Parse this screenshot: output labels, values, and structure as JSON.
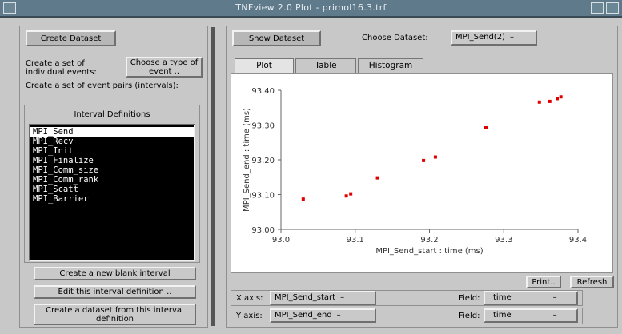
{
  "window": {
    "title": "TNFview 2.0 Plot - primol16.3.trf"
  },
  "left": {
    "create_dataset_label": "Create Dataset",
    "individual_events_text": "Create a set of individual events:",
    "choose_type_label": "Choose a type of event ..",
    "event_pairs_text": "Create a set of event pairs (intervals):",
    "interval_definitions_title": "Interval Definitions",
    "intervals": [
      "MPI_Send",
      "MPI_Recv",
      "MPI_Init",
      "MPI_Finalize",
      "MPI_Comm_size",
      "MPI_Comm_rank",
      "MPI_Scatt",
      "MPI_Barrier"
    ],
    "selected_interval": "MPI_Send",
    "new_interval_label": "Create a new blank interval",
    "edit_interval_label": "Edit this interval definition ..",
    "create_from_interval_label": "Create a dataset from this interval definition"
  },
  "right": {
    "show_dataset_label": "Show Dataset",
    "choose_dataset_label": "Choose Dataset:",
    "dataset_value": "MPI_Send(2)",
    "tabs": [
      "Plot",
      "Table",
      "Histogram"
    ],
    "active_tab": "Plot",
    "print_label": "Print..",
    "refresh_label": "Refresh",
    "x_axis_label": "X axis:",
    "x_axis_value": "MPI_Send_start",
    "y_axis_label": "Y axis:",
    "y_axis_value": "MPI_Send_end",
    "field_label": "Field:",
    "x_field_value": "time",
    "y_field_value": "time",
    "dropdown_arrow": "–"
  },
  "chart_data": {
    "type": "scatter",
    "xlabel": "MPI_Send_start : time (ms)",
    "ylabel": "MPI_Send_end : time (ms)",
    "xlim": [
      93.0,
      93.4
    ],
    "ylim": [
      93.0,
      93.4
    ],
    "xticks": [
      "93.0",
      "93.1",
      "93.2",
      "93.3",
      "93.4"
    ],
    "yticks": [
      "93.00",
      "93.10",
      "93.20",
      "93.30",
      "93.40"
    ],
    "point_color": "#e00000",
    "points": [
      [
        93.03,
        93.087
      ],
      [
        93.088,
        93.096
      ],
      [
        93.094,
        93.102
      ],
      [
        93.13,
        93.148
      ],
      [
        93.192,
        93.198
      ],
      [
        93.208,
        93.208
      ],
      [
        93.276,
        93.292
      ],
      [
        93.348,
        93.366
      ],
      [
        93.362,
        93.368
      ],
      [
        93.372,
        93.376
      ],
      [
        93.377,
        93.381
      ]
    ]
  }
}
